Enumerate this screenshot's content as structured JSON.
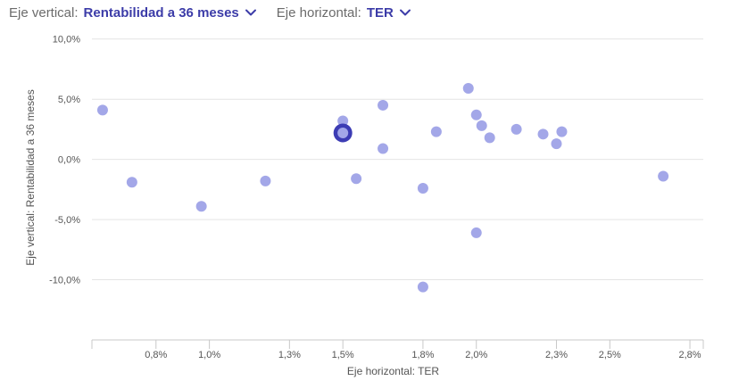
{
  "controls": {
    "vertical_label": "Eje vertical:",
    "vertical_value": "Rentabilidad a 36 meses",
    "vertical_icon": "chevron-down-icon",
    "horizontal_label": "Eje horizontal:",
    "horizontal_value": "TER",
    "horizontal_icon": "chevron-down-icon"
  },
  "colors": {
    "point": "#a3a7e8",
    "highlight_ring": "#3c3cb4",
    "highlight_fill": "#a3a7e8",
    "accent": "#3c3ca8",
    "grid": "#e4e4e4"
  },
  "chart_data": {
    "type": "scatter",
    "xlabel": "Eje horizontal: TER",
    "ylabel": "Eje vertical: Rentabilidad a 36 meses",
    "xlim": [
      0.56,
      2.85
    ],
    "ylim": [
      -15,
      10.5
    ],
    "x_ticks": [
      0.8,
      1.0,
      1.3,
      1.5,
      1.8,
      2.0,
      2.3,
      2.5,
      2.8
    ],
    "x_tick_labels": [
      "0,8%",
      "1,0%",
      "1,3%",
      "1,5%",
      "1,8%",
      "2,0%",
      "2,3%",
      "2,5%",
      "2,8%"
    ],
    "y_ticks": [
      10,
      5,
      0,
      -5,
      -10
    ],
    "y_tick_labels": [
      "10,0%",
      "5,0%",
      "0,0%",
      "-5,0%",
      "-10,0%"
    ],
    "grid": "horizontal",
    "series": [
      {
        "points": [
          {
            "x": 0.6,
            "y": 4.1
          },
          {
            "x": 0.71,
            "y": -1.9
          },
          {
            "x": 0.97,
            "y": -3.9
          },
          {
            "x": 1.21,
            "y": -1.8
          },
          {
            "x": 1.5,
            "y": 3.2
          },
          {
            "x": 1.5,
            "y": 2.2
          },
          {
            "x": 1.55,
            "y": -1.6
          },
          {
            "x": 1.65,
            "y": 4.5
          },
          {
            "x": 1.65,
            "y": 0.9
          },
          {
            "x": 1.8,
            "y": -2.4
          },
          {
            "x": 1.8,
            "y": -10.6
          },
          {
            "x": 1.85,
            "y": 2.3
          },
          {
            "x": 1.97,
            "y": 5.9
          },
          {
            "x": 2.0,
            "y": 3.7
          },
          {
            "x": 2.0,
            "y": -6.1
          },
          {
            "x": 2.02,
            "y": 2.8
          },
          {
            "x": 2.05,
            "y": 1.8
          },
          {
            "x": 2.15,
            "y": 2.5
          },
          {
            "x": 2.25,
            "y": 2.1
          },
          {
            "x": 2.3,
            "y": 1.3
          },
          {
            "x": 2.32,
            "y": 2.3
          },
          {
            "x": 2.7,
            "y": -1.4
          }
        ]
      }
    ],
    "highlight": {
      "x": 1.5,
      "y": 2.2
    }
  }
}
